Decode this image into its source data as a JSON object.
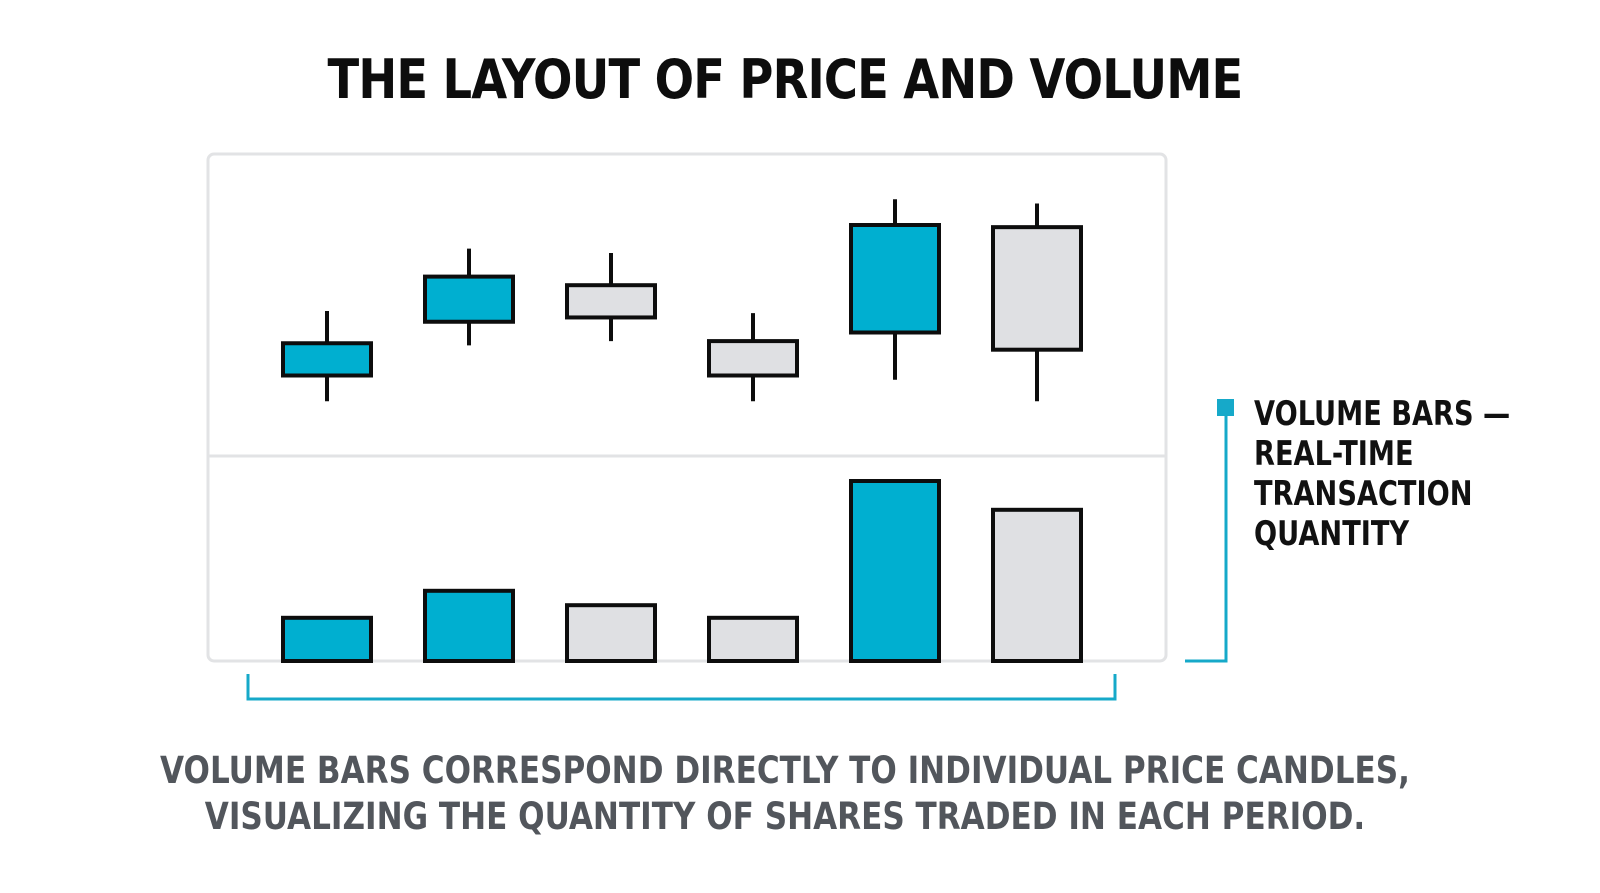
{
  "title": "THE LAYOUT OF PRICE AND VOLUME",
  "side_label": {
    "lines": [
      "VOLUME BARS —",
      "REAL-TIME",
      "TRANSACTION",
      "QUANTITY"
    ]
  },
  "caption": {
    "lines": [
      "VOLUME BARS CORRESPOND DIRECTLY TO INDIVIDUAL PRICE CANDLES,",
      "VISUALIZING THE QUANTITY OF SHARES TRADED IN EACH PERIOD."
    ]
  },
  "colors": {
    "up": "#00afd0",
    "down": "#dfe0e3",
    "outline": "#0d0d0d",
    "accent": "#16a9c9",
    "frame": "#e2e3e5"
  },
  "chart_data": {
    "type": "candlestick",
    "candles": [
      {
        "open": 30,
        "close": 45,
        "high": 60,
        "low": 18,
        "direction": "up"
      },
      {
        "open": 55,
        "close": 76,
        "high": 89,
        "low": 44,
        "direction": "up"
      },
      {
        "open": 57,
        "close": 72,
        "high": 87,
        "low": 46,
        "direction": "down"
      },
      {
        "open": 30,
        "close": 46,
        "high": 59,
        "low": 18,
        "direction": "down"
      },
      {
        "open": 50,
        "close": 100,
        "high": 112,
        "low": 28,
        "direction": "up"
      },
      {
        "open": 42,
        "close": 99,
        "high": 110,
        "low": 18,
        "direction": "down"
      }
    ],
    "volume": [
      24,
      39,
      31,
      24,
      100,
      84
    ]
  }
}
